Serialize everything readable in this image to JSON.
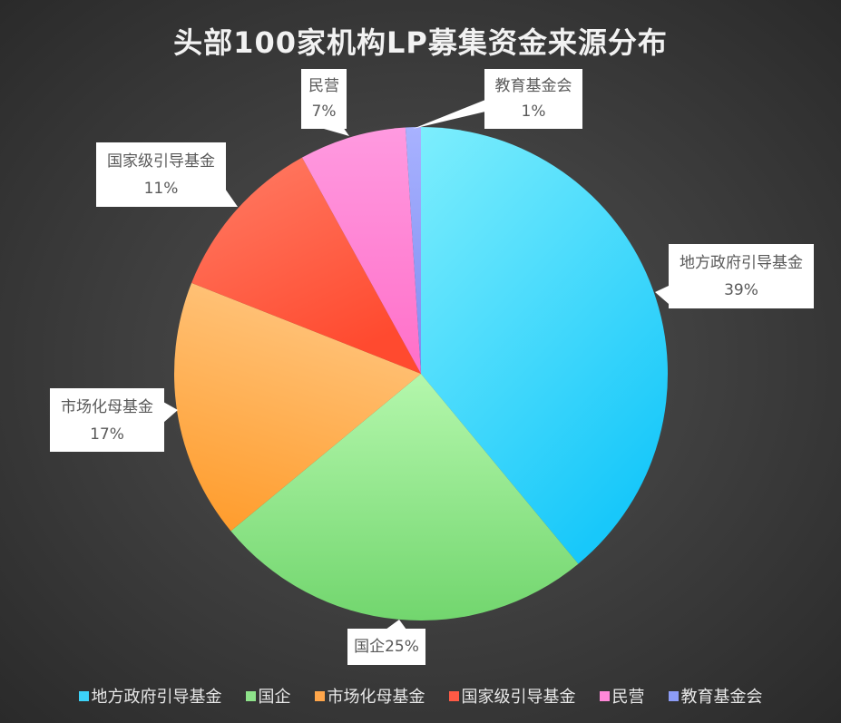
{
  "chart_data": {
    "type": "pie",
    "title": "头部100家机构LP募集资金来源分布",
    "categories": [
      "地方政府引导基金",
      "国企",
      "市场化母基金",
      "国家级引导基金",
      "民营",
      "教育基金会"
    ],
    "values": [
      39,
      25,
      17,
      11,
      7,
      1
    ],
    "unit": "%",
    "data_labels": [
      "地方政府引导基金 39%",
      "国企25%",
      "市场化母基金 17%",
      "国家级引导基金 11%",
      "民营 7%",
      "教育基金会 1%"
    ],
    "colors": [
      "#3cd2f8",
      "#8ee28a",
      "#ffa64a",
      "#ff5a45",
      "#ff88d8",
      "#8c9cf6"
    ],
    "start_angle": "12 o'clock",
    "direction": "clockwise",
    "legend_position": "bottom"
  },
  "title": "头部100家机构LP募集资金来源分布",
  "labels": {
    "dfzf": {
      "name": "地方政府引导基金",
      "pct": "39%"
    },
    "gq": {
      "text": "国企25%"
    },
    "sch": {
      "name": "市场化母基金",
      "pct": "17%"
    },
    "gjj": {
      "name": "国家级引导基金",
      "pct": "11%"
    },
    "my": {
      "name": "民营",
      "pct": "7%"
    },
    "jy": {
      "name": "教育基金会",
      "pct": "1%"
    }
  },
  "legend": [
    {
      "label": "地方政府引导基金",
      "color": "#3cd2f8"
    },
    {
      "label": "国企",
      "color": "#8ee28a"
    },
    {
      "label": "市场化母基金",
      "color": "#ffa64a"
    },
    {
      "label": "国家级引导基金",
      "color": "#ff5a45"
    },
    {
      "label": "民营",
      "color": "#ff88d8"
    },
    {
      "label": "教育基金会",
      "color": "#8c9cf6"
    }
  ]
}
